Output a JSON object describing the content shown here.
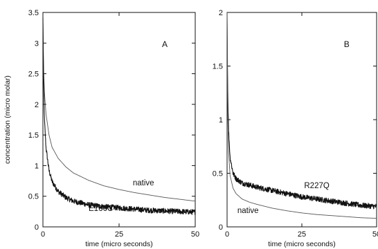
{
  "chart_data": [
    {
      "type": "line",
      "panel_label": "A",
      "xlabel": "time (micro seconds)",
      "ylabel": "concentration (micro molar)",
      "xlim": [
        0,
        50
      ],
      "ylim": [
        0,
        3.5
      ],
      "x_ticks": [
        "0",
        "25",
        "50"
      ],
      "y_ticks": [
        "0",
        "0.5",
        "1",
        "1.5",
        "2",
        "2.5",
        "3",
        "3.5"
      ],
      "grid": false,
      "series": [
        {
          "name": "native",
          "style": "thin",
          "x": [
            0,
            0.2,
            0.5,
            1,
            2,
            3,
            5,
            7.5,
            10,
            15,
            20,
            25,
            30,
            35,
            40,
            45,
            50
          ],
          "y": [
            3.4,
            2.6,
            2.2,
            1.85,
            1.5,
            1.3,
            1.12,
            0.98,
            0.88,
            0.76,
            0.67,
            0.61,
            0.56,
            0.52,
            0.48,
            0.45,
            0.42
          ]
        },
        {
          "name": "E166C",
          "style": "noisy",
          "x": [
            0,
            0.2,
            0.5,
            1,
            2,
            3,
            5,
            7.5,
            10,
            15,
            20,
            25,
            30,
            35,
            40,
            45,
            50
          ],
          "y": [
            3.4,
            2.4,
            1.75,
            1.3,
            0.92,
            0.74,
            0.58,
            0.48,
            0.42,
            0.36,
            0.33,
            0.31,
            0.29,
            0.27,
            0.26,
            0.25,
            0.24
          ]
        }
      ],
      "annotations": [
        {
          "text": "native",
          "x": 33,
          "y": 0.68
        },
        {
          "text": "E166C",
          "x": 19,
          "y": 0.26
        }
      ]
    },
    {
      "type": "line",
      "panel_label": "B",
      "xlabel": "time (micro seconds)",
      "xlim": [
        0,
        50
      ],
      "ylim": [
        0,
        2
      ],
      "x_ticks": [
        "0",
        "25",
        "50"
      ],
      "y_ticks": [
        "0",
        "0.5",
        "1",
        "1.5",
        "2"
      ],
      "grid": false,
      "series": [
        {
          "name": "R227Q",
          "style": "noisy",
          "x": [
            0,
            0.2,
            0.5,
            1,
            2,
            3,
            5,
            7.5,
            10,
            15,
            20,
            25,
            30,
            35,
            40,
            45,
            50
          ],
          "y": [
            2.0,
            1.3,
            0.9,
            0.65,
            0.5,
            0.45,
            0.41,
            0.39,
            0.37,
            0.34,
            0.31,
            0.28,
            0.26,
            0.24,
            0.22,
            0.2,
            0.19
          ]
        },
        {
          "name": "native",
          "style": "thin",
          "x": [
            0,
            0.2,
            0.5,
            1,
            2,
            3,
            5,
            7.5,
            10,
            15,
            20,
            25,
            30,
            35,
            40,
            45,
            50
          ],
          "y": [
            2.0,
            1.1,
            0.7,
            0.48,
            0.36,
            0.31,
            0.26,
            0.23,
            0.21,
            0.175,
            0.15,
            0.13,
            0.115,
            0.105,
            0.095,
            0.085,
            0.08
          ]
        }
      ],
      "annotations": [
        {
          "text": "R227Q",
          "x": 30,
          "y": 0.36
        },
        {
          "text": "native",
          "x": 7,
          "y": 0.13
        }
      ]
    }
  ]
}
